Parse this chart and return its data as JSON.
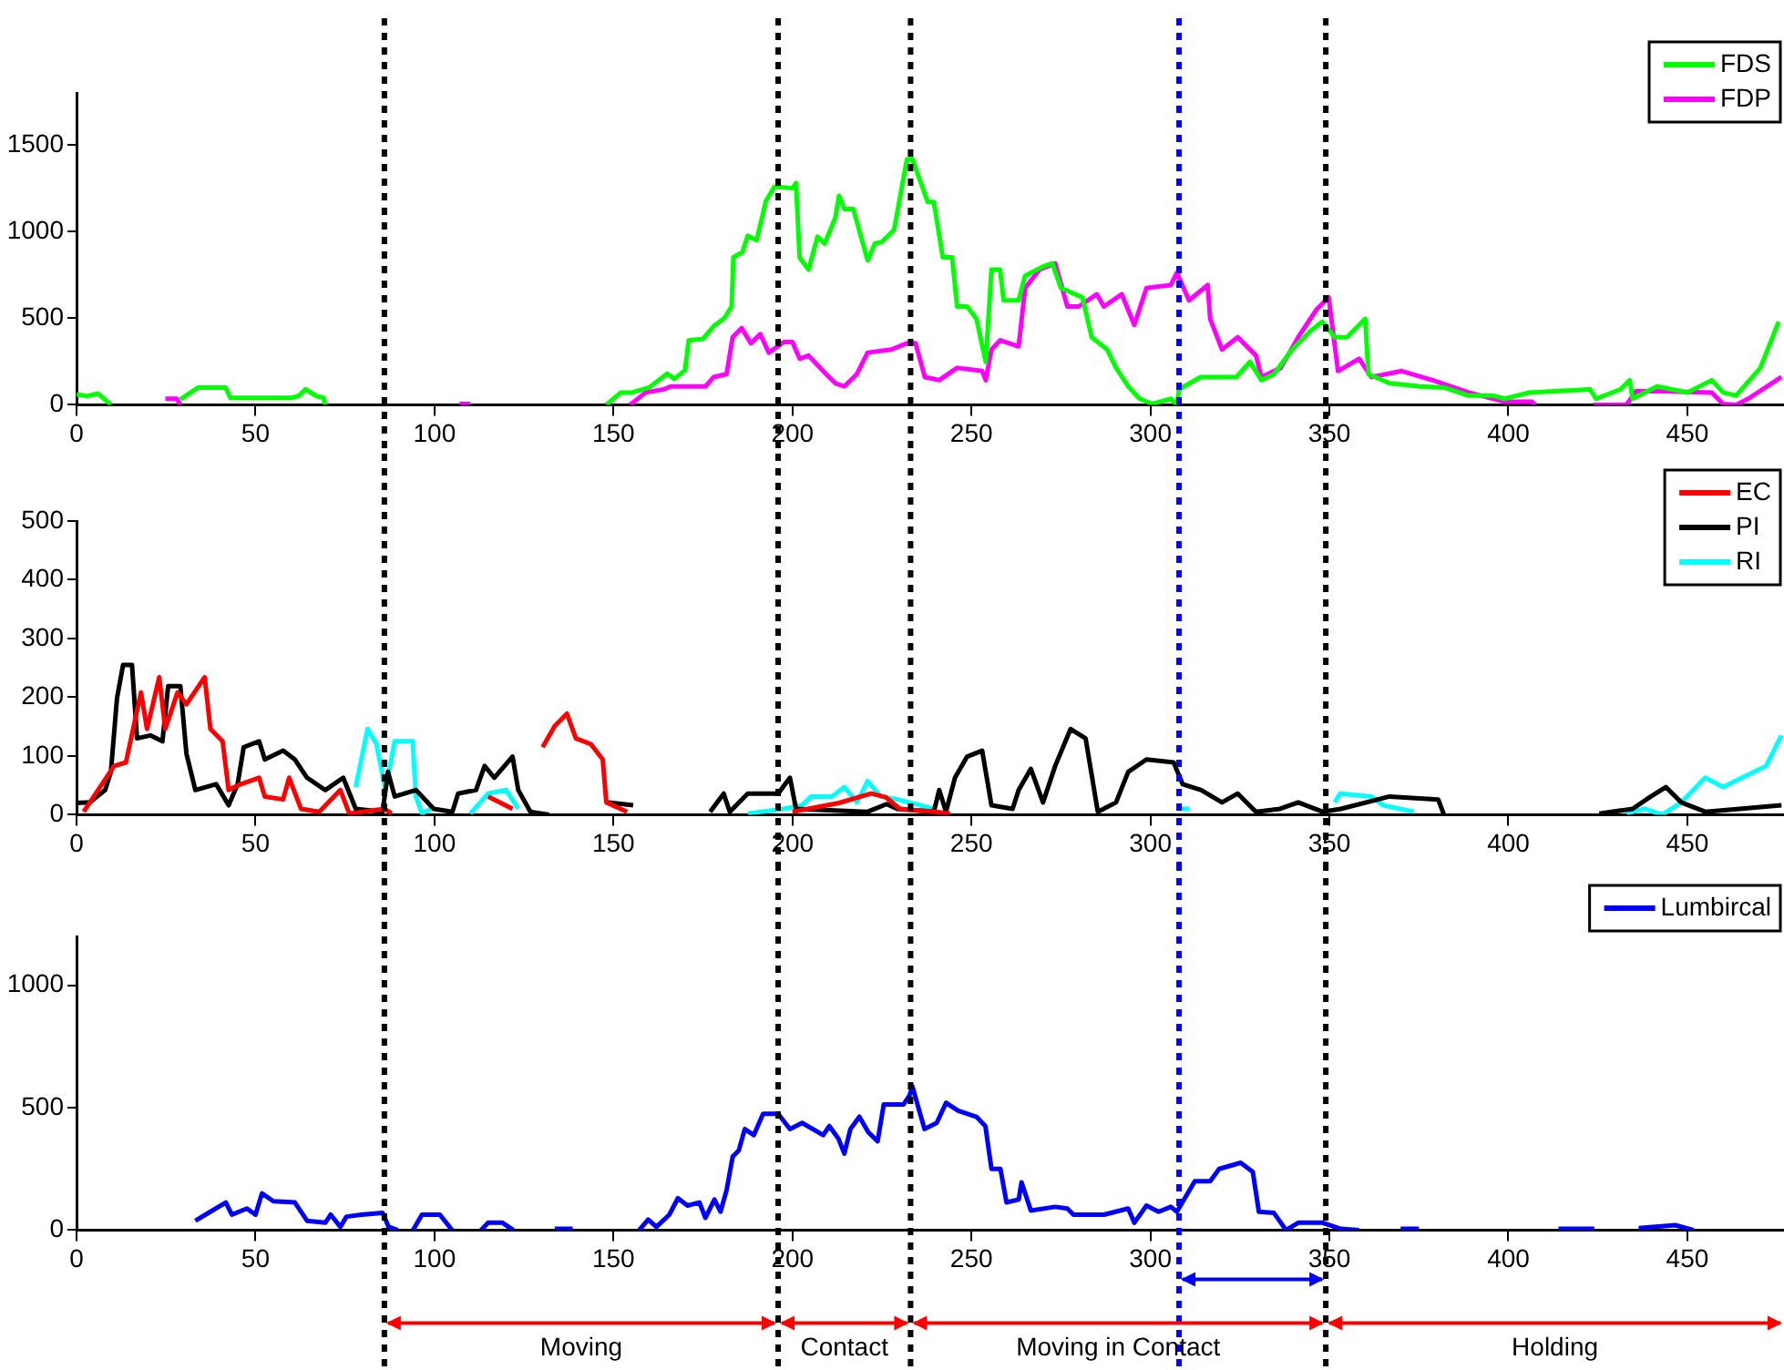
{
  "chart_data": [
    {
      "type": "line",
      "xlim": [
        0,
        477
      ],
      "xticks": [
        0,
        50,
        100,
        150,
        200,
        250,
        300,
        350,
        400,
        450
      ],
      "ylim": [
        0,
        1800
      ],
      "yticks": [
        0,
        500,
        1000,
        1500
      ],
      "legend": "top right",
      "marker": "none",
      "ref_lines": [
        {
          "axis": "x",
          "value": 86,
          "color": "#000000",
          "line_style": "dashed"
        },
        {
          "axis": "x",
          "value": 196,
          "color": "#000000",
          "line_style": "dashed"
        },
        {
          "axis": "x",
          "value": 233,
          "color": "#000000",
          "line_style": "dashed"
        },
        {
          "axis": "x",
          "value": 308,
          "color": "#0000ff",
          "line_style": "dashed"
        },
        {
          "axis": "x",
          "value": 349,
          "color": "#000000",
          "line_style": "dashed"
        }
      ],
      "series": [
        {
          "name": "FDS",
          "color": "#00ff00",
          "x": [
            0,
            3,
            6,
            9.6,
            19,
            29,
            34,
            41.6,
            43,
            60,
            62,
            64,
            67,
            69,
            69.5,
            71,
            148,
            152,
            155,
            160,
            165,
            167,
            170,
            171,
            175,
            178,
            181,
            183,
            183.5,
            186,
            187.5,
            190,
            192.6,
            195,
            200,
            201,
            202,
            204.5,
            207,
            209,
            212,
            213,
            214.5,
            217,
            221,
            223,
            225,
            228.4,
            232,
            233.5,
            237.8,
            239.5,
            242,
            244.6,
            246,
            248.8,
            251.4,
            254,
            255.6,
            258,
            259,
            263.2,
            265,
            270,
            272.6,
            275,
            281,
            283.6,
            287.9,
            290.4,
            293.8,
            297,
            300.6,
            305.7,
            307.4,
            308,
            314,
            324,
            327.8,
            331,
            334.5,
            339.6,
            344.7,
            348,
            351.5,
            354.9,
            358.3,
            360,
            360.9,
            366.8,
            375.3,
            382,
            388.9,
            395.7,
            399,
            405.9,
            422.8,
            424.5,
            431.3,
            433.9,
            434.7,
            441.5,
            450,
            456.8,
            460,
            463.6,
            470.4,
            475.5
          ],
          "values": [
            60,
            50,
            65,
            0,
            null,
            30,
            100,
            100,
            40,
            40,
            50,
            90,
            50,
            40,
            0,
            null,
            0,
            70,
            70,
            100,
            180,
            150,
            200,
            372,
            380,
            454,
            500,
            567,
            851,
            880,
            975,
            950,
            1177,
            1259,
            1250,
            1280,
            850,
            780,
            970,
            930,
            1081,
            1206,
            1130,
            1130,
            833,
            930,
            940,
            1010,
            1418,
            1418,
            1170,
            1170,
            851,
            851,
            567,
            567,
            496,
            248,
            780,
            780,
            603,
            603,
            745,
            798,
            816,
            674,
            620,
            390,
            319,
            213,
            106,
            35,
            5,
            35,
            0,
            89,
            160,
            160,
            248,
            142,
            177,
            319,
            425,
            479,
            390,
            390,
            461,
            496,
            177,
            124,
            106,
            100,
            53,
            53,
            35,
            71,
            89,
            35,
            89,
            142,
            35,
            106,
            71,
            142,
            71,
            53,
            213,
            479
          ]
        },
        {
          "name": "FDP",
          "color": "#ff00ff",
          "x": [
            24.8,
            28,
            29,
            30,
            107,
            110,
            111,
            154.6,
            159,
            164,
            166,
            175.7,
            178,
            181.6,
            183.3,
            185.8,
            188.4,
            191,
            193.4,
            197.6,
            200,
            202,
            204.5,
            209.4,
            212,
            214.5,
            218,
            221,
            227.6,
            232,
            234.4,
            237,
            241,
            246,
            253,
            254,
            255.6,
            258,
            263.2,
            265,
            269,
            273.4,
            276.8,
            280,
            285,
            287,
            292,
            295.5,
            298.9,
            305.7,
            307.4,
            310.8,
            316,
            316.7,
            320,
            324.4,
            329.5,
            331,
            336.4,
            341.3,
            346.4,
            349.8,
            352.4,
            358.3,
            361.7,
            370.2,
            378.8,
            388.9,
            399,
            406.6,
            407.5,
            415,
            423.7,
            433,
            435.6,
            443,
            456.8,
            460,
            463.6,
            467,
            476.3
          ],
          "values": [
            35,
            35,
            0,
            null,
            5,
            5,
            null,
            0,
            71,
            89,
            106,
            106,
            160,
            177,
            390,
            443,
            355,
            408,
            301,
            362,
            362,
            266,
            284,
            177,
            124,
            106,
            177,
            301,
            319,
            355,
            355,
            160,
            142,
            213,
            195,
            142,
            319,
            372,
            337,
            674,
            780,
            816,
            567,
            567,
            638,
            567,
            638,
            461,
            674,
            691,
            762,
            603,
            691,
            496,
            319,
            390,
            284,
            160,
            213,
            390,
            550,
            620,
            195,
            266,
            160,
            195,
            142,
            71,
            18,
            18,
            0,
            null,
            0,
            0,
            78,
            78,
            71,
            5,
            0,
            35,
            160
          ]
        }
      ]
    },
    {
      "type": "line",
      "xlim": [
        0,
        477
      ],
      "xticks": [
        0,
        50,
        100,
        150,
        200,
        250,
        300,
        350,
        400,
        450
      ],
      "ylim": [
        0,
        500
      ],
      "yticks": [
        0,
        100,
        200,
        300,
        400,
        500
      ],
      "legend": "top right",
      "marker": "none",
      "ref_lines": [
        {
          "axis": "x",
          "value": 86,
          "color": "#000000",
          "line_style": "dashed"
        },
        {
          "axis": "x",
          "value": 196,
          "color": "#000000",
          "line_style": "dashed"
        },
        {
          "axis": "x",
          "value": 233,
          "color": "#000000",
          "line_style": "dashed"
        },
        {
          "axis": "x",
          "value": 308,
          "color": "#0000ff",
          "line_style": "dashed"
        },
        {
          "axis": "x",
          "value": 349,
          "color": "#000000",
          "line_style": "dashed"
        }
      ],
      "series": [
        {
          "name": "EC",
          "color": "#ff0000",
          "x": [
            2,
            10.5,
            13.8,
            18,
            19.7,
            23.1,
            24.8,
            28.2,
            30.7,
            35.8,
            37.4,
            40.8,
            42.5,
            45.9,
            51,
            52.6,
            57.7,
            59.4,
            62.7,
            67.8,
            73.7,
            76.2,
            86,
            88,
            90,
            115,
            121.8,
            123,
            130.2,
            133.6,
            137,
            139.5,
            143.7,
            147,
            148,
            153.8,
            156,
            200,
            213,
            222,
            226,
            230,
            240,
            244
          ],
          "values": [
            5,
            83,
            89,
            208,
            146,
            234,
            146,
            208,
            188,
            234,
            146,
            125,
            42,
            52,
            63,
            31,
            26,
            63,
            10,
            5,
            42,
            2,
            10,
            2,
            null,
            31,
            10,
            null,
            115,
            151,
            172,
            130,
            120,
            94,
            21,
            5,
            null,
            5,
            20,
            36,
            30,
            10,
            5,
            2
          ]
        },
        {
          "name": "PI",
          "color": "#000000",
          "x": [
            0,
            3.7,
            8,
            9.6,
            11.3,
            13,
            15.5,
            16.9,
            20.6,
            24,
            25.6,
            29,
            30.7,
            33.2,
            39,
            42.5,
            45,
            46.7,
            51,
            52.6,
            57.7,
            61,
            64.4,
            69.5,
            74.5,
            78,
            85.5,
            87,
            88.9,
            94.8,
            99.8,
            105,
            106.6,
            111.6,
            114,
            116.7,
            121.8,
            123.4,
            126.8,
            132,
            135,
            148,
            155.5,
            160,
            177,
            180.8,
            182.5,
            187.5,
            196,
            199.3,
            201,
            221,
            226.3,
            229.3,
            239.5,
            241,
            242.9,
            245.4,
            248.8,
            253,
            255.6,
            261.5,
            263.2,
            266.6,
            270,
            273.4,
            277.7,
            281.9,
            285.3,
            290.4,
            293.8,
            298.9,
            306.5,
            309,
            314.2,
            320,
            324.4,
            329.5,
            336.2,
            341.3,
            348.1,
            353.2,
            366.8,
            380.4,
            382,
            390,
            425.4,
            434.7,
            439.8,
            444,
            448.3,
            455,
            476.3
          ],
          "values": [
            20,
            21,
            42,
            73,
            198,
            255,
            255,
            130,
            135,
            125,
            219,
            219,
            104,
            42,
            52,
            16,
            52,
            115,
            125,
            94,
            109,
            94,
            63,
            42,
            63,
            10,
            5,
            73,
            31,
            42,
            10,
            5,
            36,
            42,
            83,
            63,
            99,
            42,
            5,
            0,
            null,
            21,
            16,
            null,
            5,
            36,
            5,
            36,
            36,
            63,
            10,
            5,
            18,
            10,
            5,
            42,
            5,
            63,
            99,
            109,
            16,
            10,
            42,
            78,
            21,
            83,
            146,
            130,
            5,
            21,
            73,
            94,
            89,
            52,
            42,
            21,
            36,
            5,
            10,
            21,
            5,
            10,
            31,
            26,
            0,
            null,
            2,
            10,
            31,
            47,
            21,
            5,
            16
          ]
        },
        {
          "name": "RI",
          "color": "#00ffff",
          "x": [
            78,
            81.3,
            83.8,
            86.3,
            88.9,
            93.9,
            94.8,
            96.5,
            99,
            101,
            110,
            115,
            120,
            123.4,
            125,
            187.5,
            197.6,
            202.7,
            205.2,
            211,
            214.5,
            218,
            221,
            224.6,
            229.3,
            239.5,
            241,
            308,
            311,
            313,
            351.5,
            353,
            361.7,
            365,
            373.6,
            375,
            433,
            438,
            443,
            448.3,
            455,
            460,
            467,
            472,
            476.3
          ],
          "values": [
            47,
            146,
            120,
            42,
            125,
            125,
            31,
            2,
            10,
            null,
            2,
            36,
            42,
            10,
            null,
            2,
            10,
            16,
            31,
            31,
            47,
            21,
            57,
            31,
            26,
            10,
            null,
            10,
            10,
            null,
            21,
            36,
            31,
            16,
            5,
            null,
            2,
            10,
            0,
            21,
            63,
            47,
            68,
            83,
            135
          ]
        }
      ]
    },
    {
      "type": "line",
      "xlim": [
        0,
        477
      ],
      "xticks": [
        0,
        50,
        100,
        150,
        200,
        250,
        300,
        350,
        400,
        450
      ],
      "ylim": [
        0,
        1200
      ],
      "yticks": [
        0,
        500,
        1000
      ],
      "legend": "top right",
      "marker": "none",
      "ref_lines": [
        {
          "axis": "x",
          "value": 86,
          "color": "#000000",
          "line_style": "dashed"
        },
        {
          "axis": "x",
          "value": 196,
          "color": "#000000",
          "line_style": "dashed"
        },
        {
          "axis": "x",
          "value": 233,
          "color": "#000000",
          "line_style": "dashed"
        },
        {
          "axis": "x",
          "value": 308,
          "color": "#0000ff",
          "line_style": "dashed"
        },
        {
          "axis": "x",
          "value": 349,
          "color": "#000000",
          "line_style": "dashed"
        }
      ],
      "annotations": [
        "Moving",
        "Contact",
        "Moving in Contact",
        "Holding"
      ],
      "series": [
        {
          "name": "Lumbircal",
          "color": "#0000ff",
          "x": [
            33.2,
            37.4,
            41.7,
            43.4,
            47.6,
            50,
            51.8,
            55,
            61,
            64.4,
            69.5,
            71,
            73.7,
            75.4,
            79.6,
            85.5,
            87.2,
            89.7,
            91,
            94,
            96.5,
            101.5,
            104.9,
            108,
            113,
            115,
            119,
            122,
            125,
            133.6,
            138.6,
            145,
            157.2,
            159.7,
            162,
            165.6,
            168,
            170.7,
            174,
            175.7,
            178.2,
            179.9,
            181.6,
            183.3,
            185,
            186.7,
            189.2,
            191.8,
            196,
            199.3,
            202.7,
            208.6,
            210.3,
            212.8,
            214.5,
            216.2,
            218.7,
            221.2,
            223.8,
            225.5,
            231,
            232.7,
            233.5,
            235.2,
            236.9,
            240.3,
            242.9,
            246.3,
            251.4,
            253.9,
            255.6,
            258.1,
            259.8,
            263.2,
            264,
            266.6,
            273.4,
            276.8,
            278.5,
            287,
            293.8,
            295.5,
            298.9,
            302.3,
            305.7,
            307.4,
            312.4,
            316.7,
            319.2,
            325.2,
            328.6,
            330.3,
            334.5,
            337.9,
            341.3,
            348.1,
            353.2,
            358.3,
            362,
            369.9,
            375,
            380,
            414,
            424,
            430,
            436.4,
            446.6,
            451.7
          ],
          "values": [
            38,
            75,
            113,
            63,
            88,
            63,
            150,
            118,
            113,
            38,
            30,
            63,
            13,
            55,
            63,
            70,
            13,
            0,
            null,
            0,
            63,
            63,
            0,
            null,
            0,
            30,
            30,
            0,
            null,
            5,
            5,
            null,
            0,
            43,
            13,
            63,
            130,
            100,
            113,
            50,
            125,
            75,
            163,
            300,
            325,
            413,
            388,
            475,
            475,
            413,
            438,
            388,
            425,
            375,
            313,
            413,
            463,
            400,
            363,
            513,
            513,
            550,
            588,
            500,
            413,
            438,
            520,
            488,
            463,
            425,
            250,
            250,
            113,
            125,
            195,
            80,
            95,
            88,
            63,
            63,
            88,
            30,
            100,
            75,
            95,
            75,
            200,
            200,
            250,
            275,
            238,
            75,
            70,
            0,
            30,
            30,
            5,
            0,
            null,
            5,
            5,
            null,
            5,
            5,
            null,
            8,
            20,
            0
          ]
        }
      ]
    }
  ]
}
